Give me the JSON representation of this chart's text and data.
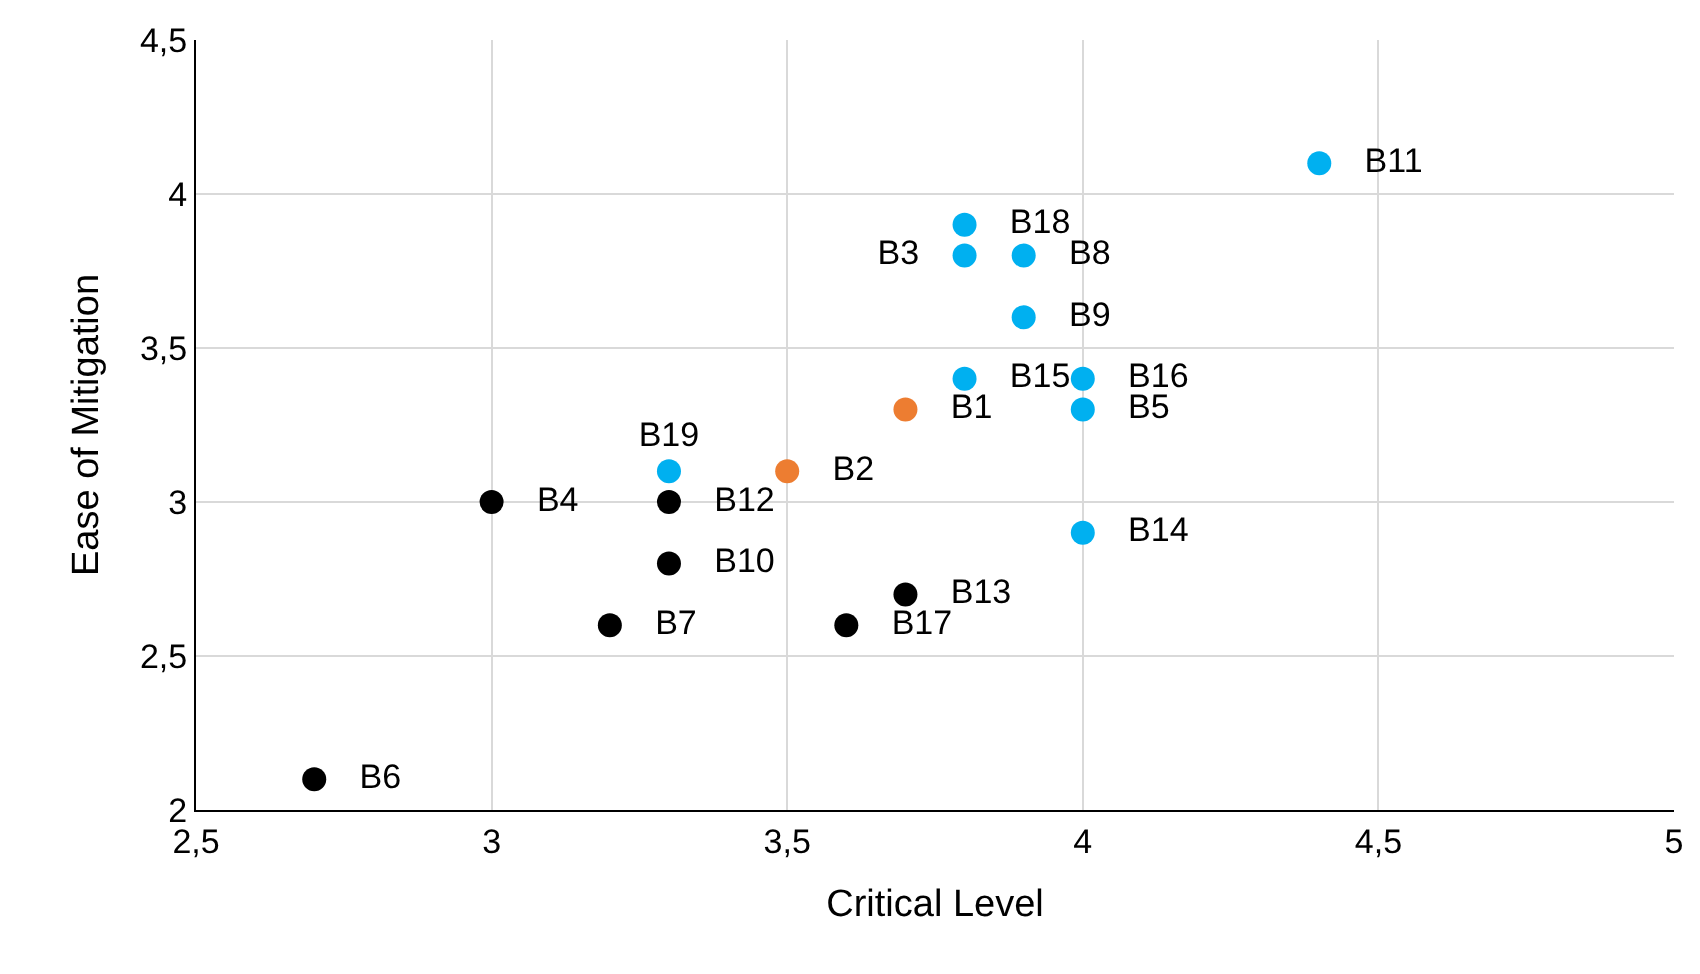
{
  "chart_data": {
    "type": "scatter",
    "xlabel": "Critical Level",
    "ylabel": "Ease of Mitigation",
    "xlim": [
      2.5,
      5
    ],
    "ylim": [
      2,
      4.5
    ],
    "xticks": [
      {
        "value": 2.5,
        "label": "2,5"
      },
      3,
      {
        "value": 3.5,
        "label": "3,5"
      },
      4,
      {
        "value": 4.5,
        "label": "4,5"
      },
      5
    ],
    "yticks": [
      2,
      {
        "value": 2.5,
        "label": "2,5"
      },
      3,
      {
        "value": 3.5,
        "label": "3,5"
      },
      4,
      {
        "value": 4.5,
        "label": "4,5"
      }
    ],
    "grid": true,
    "marker": "circle",
    "series": [
      {
        "color": "#ed7d31",
        "x": [
          3.7,
          3.5
        ],
        "values": [
          3.3,
          3.1
        ],
        "value_labels": [
          "B1",
          "B2"
        ]
      },
      {
        "color": "#00b0f0",
        "x": [
          3.8,
          4.0,
          3.9,
          3.9,
          4.4,
          4.0,
          3.8,
          4.0,
          3.8,
          3.3
        ],
        "values": [
          3.8,
          3.3,
          3.8,
          3.6,
          4.1,
          2.9,
          3.4,
          3.4,
          3.9,
          3.1
        ],
        "value_labels": [
          "B3",
          "B5",
          "B8",
          "B9",
          "B11",
          "B14",
          "B15",
          "B16",
          "B18",
          "B19"
        ]
      },
      {
        "color": "#000000",
        "x": [
          3.0,
          2.7,
          3.2,
          3.3,
          3.3,
          3.7,
          3.6
        ],
        "values": [
          3.0,
          2.1,
          2.6,
          2.8,
          3.0,
          2.7,
          2.6
        ],
        "value_labels": [
          "B4",
          "B6",
          "B7",
          "B10",
          "B12",
          "B13",
          "B17"
        ]
      }
    ]
  }
}
